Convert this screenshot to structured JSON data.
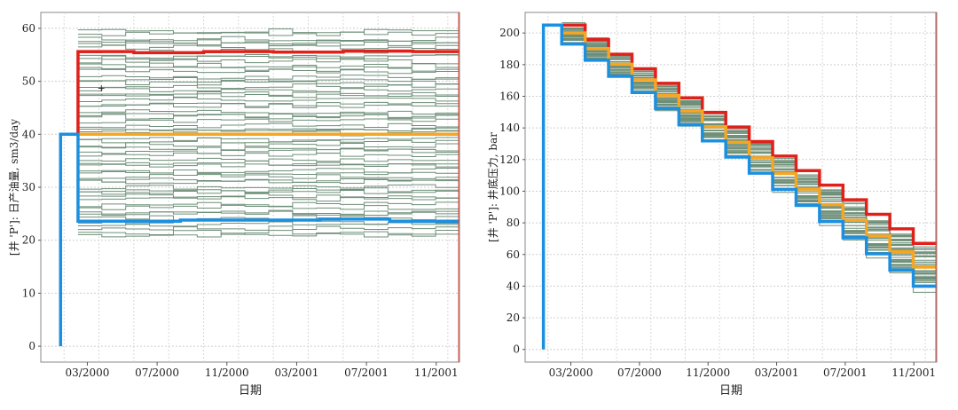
{
  "chart_data": [
    {
      "type": "line",
      "title": "",
      "xlabel": "日期",
      "ylabel": "[井 'P']: 日产油量, sm3/day",
      "ylim": [
        -3,
        63
      ],
      "xlim": [
        0,
        18
      ],
      "yticks": [
        0,
        10,
        20,
        30,
        40,
        50,
        60
      ],
      "xticks": [
        {
          "label": "03/2000",
          "value": 2
        },
        {
          "label": "07/2000",
          "value": 5
        },
        {
          "label": "11/2000",
          "value": 8
        },
        {
          "label": "03/2001",
          "value": 11
        },
        {
          "label": "07/2001",
          "value": 14
        },
        {
          "label": "11/2001",
          "value": 17
        }
      ],
      "grid": true,
      "vline_x": 18,
      "ensemble": {
        "count": 60,
        "min": 21,
        "max": 59.5,
        "seed": 7,
        "x_start": 1.6,
        "x_end": 18,
        "steps": 16
      },
      "series": [
        {
          "name": "red",
          "color": "#e0201a",
          "points": [
            [
              1.6,
              40
            ],
            [
              1.6,
              55.6
            ],
            [
              4,
              55.6
            ],
            [
              4,
              55.4
            ],
            [
              7,
              55.4
            ],
            [
              7,
              55.6
            ],
            [
              10,
              55.6
            ],
            [
              10,
              55.5
            ],
            [
              13,
              55.5
            ],
            [
              13,
              55.7
            ],
            [
              16,
              55.7
            ],
            [
              16,
              55.6
            ],
            [
              18,
              55.6
            ]
          ]
        },
        {
          "name": "orange",
          "color": "#f5a623",
          "points": [
            [
              1.6,
              40
            ],
            [
              18,
              40
            ]
          ]
        },
        {
          "name": "blue",
          "color": "#1b8fe0",
          "points": [
            [
              0.85,
              0
            ],
            [
              0.85,
              40
            ],
            [
              1.6,
              40
            ],
            [
              1.6,
              23.6
            ],
            [
              6,
              23.6
            ],
            [
              6,
              23.8
            ],
            [
              12,
              23.8
            ],
            [
              12,
              24
            ],
            [
              15,
              24
            ],
            [
              15,
              23.6
            ],
            [
              18,
              23.6
            ]
          ]
        }
      ],
      "marker": {
        "x": 2.6,
        "y": 48.8,
        "symbol": "+"
      }
    },
    {
      "type": "line",
      "title": "",
      "xlabel": "日期",
      "ylabel": "[井 'P']: 井底压力, bar",
      "ylim": [
        -8,
        213
      ],
      "xlim": [
        0,
        18
      ],
      "yticks": [
        0,
        20,
        40,
        60,
        80,
        100,
        120,
        140,
        160,
        180,
        200
      ],
      "xticks": [
        {
          "label": "03/2000",
          "value": 2
        },
        {
          "label": "07/2000",
          "value": 5
        },
        {
          "label": "11/2000",
          "value": 8
        },
        {
          "label": "03/2001",
          "value": 11
        },
        {
          "label": "07/2001",
          "value": 14
        },
        {
          "label": "11/2001",
          "value": 17
        }
      ],
      "grid": true,
      "vline_x": 18,
      "ensemble": {
        "count": 40,
        "spread": 14,
        "seed": 11,
        "x_start": 1.6,
        "x_end": 18,
        "steps": 16
      },
      "series": [
        {
          "name": "red",
          "color": "#e0201a",
          "start": 205,
          "end": 67
        },
        {
          "name": "orange",
          "color": "#f5a623",
          "start": 200,
          "end": 52
        },
        {
          "name": "blue",
          "color": "#1b8fe0",
          "start": 193,
          "end": 40,
          "prefix": [
            [
              0.8,
              0
            ],
            [
              0.8,
              205
            ],
            [
              1.6,
              205
            ]
          ]
        }
      ]
    }
  ]
}
